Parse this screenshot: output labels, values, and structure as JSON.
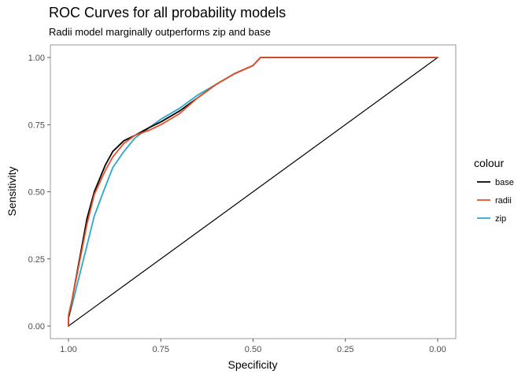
{
  "chart_data": {
    "type": "line",
    "title": "ROC Curves for all probability models",
    "subtitle": "Radii model marginally outperforms zip and base",
    "xlabel": "Specificity",
    "ylabel": "Sensitivity",
    "xlim": [
      1.0,
      0.0
    ],
    "ylim": [
      0.0,
      1.0
    ],
    "x_reversed": true,
    "x_ticks": [
      "1.00",
      "0.75",
      "0.50",
      "0.25",
      "0.00"
    ],
    "x_tick_values": [
      1.0,
      0.75,
      0.5,
      0.25,
      0.0
    ],
    "y_ticks": [
      "0.00",
      "0.25",
      "0.50",
      "0.75",
      "1.00"
    ],
    "y_tick_values": [
      0.0,
      0.25,
      0.5,
      0.75,
      1.0
    ],
    "grid": false,
    "legend": {
      "title": "colour",
      "position": "right"
    },
    "series": [
      {
        "name": "base",
        "color": "#000000",
        "points": [
          [
            1.0,
            0.0
          ],
          [
            1.0,
            0.03
          ],
          [
            0.99,
            0.1
          ],
          [
            0.97,
            0.25
          ],
          [
            0.95,
            0.4
          ],
          [
            0.93,
            0.5
          ],
          [
            0.9,
            0.6
          ],
          [
            0.88,
            0.65
          ],
          [
            0.85,
            0.69
          ],
          [
            0.82,
            0.71
          ],
          [
            0.78,
            0.74
          ],
          [
            0.75,
            0.76
          ],
          [
            0.7,
            0.8
          ],
          [
            0.65,
            0.85
          ],
          [
            0.6,
            0.9
          ],
          [
            0.55,
            0.94
          ],
          [
            0.5,
            0.97
          ],
          [
            0.48,
            1.0
          ],
          [
            0.25,
            1.0
          ],
          [
            0.0,
            1.0
          ]
        ]
      },
      {
        "name": "radii",
        "color": "#e8502a",
        "points": [
          [
            1.0,
            0.0
          ],
          [
            1.0,
            0.04
          ],
          [
            0.99,
            0.1
          ],
          [
            0.97,
            0.24
          ],
          [
            0.95,
            0.38
          ],
          [
            0.93,
            0.49
          ],
          [
            0.9,
            0.58
          ],
          [
            0.88,
            0.63
          ],
          [
            0.85,
            0.68
          ],
          [
            0.82,
            0.71
          ],
          [
            0.78,
            0.73
          ],
          [
            0.75,
            0.75
          ],
          [
            0.7,
            0.79
          ],
          [
            0.65,
            0.85
          ],
          [
            0.6,
            0.9
          ],
          [
            0.55,
            0.94
          ],
          [
            0.5,
            0.97
          ],
          [
            0.48,
            1.0
          ],
          [
            0.25,
            1.0
          ],
          [
            0.0,
            1.0
          ]
        ]
      },
      {
        "name": "zip",
        "color": "#2aa7c8",
        "points": [
          [
            1.0,
            0.0
          ],
          [
            1.0,
            0.03
          ],
          [
            0.99,
            0.08
          ],
          [
            0.97,
            0.19
          ],
          [
            0.95,
            0.3
          ],
          [
            0.93,
            0.41
          ],
          [
            0.9,
            0.52
          ],
          [
            0.88,
            0.59
          ],
          [
            0.85,
            0.65
          ],
          [
            0.82,
            0.7
          ],
          [
            0.78,
            0.74
          ],
          [
            0.75,
            0.77
          ],
          [
            0.7,
            0.81
          ],
          [
            0.65,
            0.86
          ],
          [
            0.6,
            0.9
          ],
          [
            0.55,
            0.94
          ],
          [
            0.5,
            0.97
          ],
          [
            0.48,
            1.0
          ],
          [
            0.25,
            1.0
          ],
          [
            0.0,
            1.0
          ]
        ]
      },
      {
        "name": "diagonal",
        "color": "#000000",
        "points": [
          [
            1.0,
            0.0
          ],
          [
            0.0,
            1.0
          ]
        ]
      }
    ]
  }
}
